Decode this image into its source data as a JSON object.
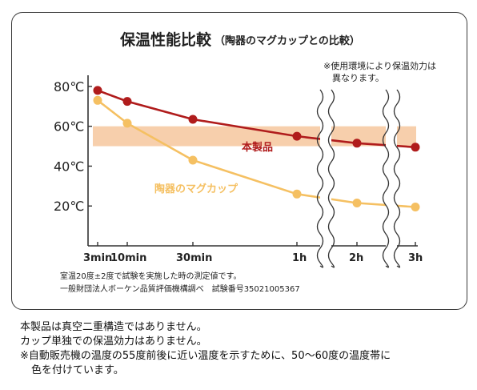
{
  "chart_data": {
    "type": "line",
    "title": "保温性能比較",
    "subtitle": "（陶器のマグカップとの比較）",
    "note_top": [
      "※使用環境により保温効力は",
      "異なります。"
    ],
    "y_ticks": [
      "80℃",
      "60℃",
      "40℃",
      "20℃"
    ],
    "y_tick_values": [
      80,
      60,
      40,
      20
    ],
    "ylim": [
      0,
      88
    ],
    "x_ticks": [
      "3min",
      "10min",
      "30min",
      "1h",
      "2h",
      "3h"
    ],
    "axis_breaks": true,
    "band": {
      "from": 50,
      "to": 60,
      "color": "#f7cfac"
    },
    "series": [
      {
        "name": "本製品",
        "color": "#b01c1c",
        "values": [
          78,
          72.5,
          63.5,
          55,
          51.5,
          49.5
        ]
      },
      {
        "name": "陶器のマグカップ",
        "color": "#f5c062",
        "values": [
          73,
          61.5,
          43,
          26,
          21.5,
          19.5
        ]
      }
    ],
    "footnote": [
      "室温20度±2度で試験を実施した時の測定値です。",
      "一般財団法人ボーケン品質評価機構調べ　試験番号35021005367"
    ]
  },
  "notes": [
    "本製品は真空二重構造ではありません。",
    "カップ単独での保温効力はありません。",
    "※自動販売機の温度の55度前後に近い温度を示すために、50〜60度の温度帯に",
    "色を付けています。"
  ]
}
